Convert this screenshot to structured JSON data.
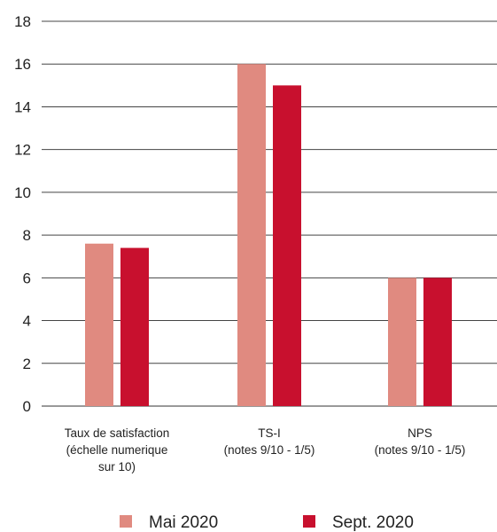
{
  "chart_data": {
    "type": "bar",
    "categories": [
      [
        "Taux de satisfaction",
        "(échelle numerique",
        "sur 10)"
      ],
      [
        "TS-I",
        "(notes 9/10 - 1/5)"
      ],
      [
        "NPS",
        "(notes 9/10 - 1/5)"
      ]
    ],
    "series": [
      {
        "name": "Mai 2020",
        "color": "#e08a80",
        "values": [
          7.6,
          16,
          6
        ]
      },
      {
        "name": "Sept. 2020",
        "color": "#c8102e",
        "values": [
          7.4,
          15,
          6
        ]
      }
    ],
    "ylim": [
      0,
      18
    ],
    "yticks": [
      0,
      2,
      4,
      6,
      8,
      10,
      12,
      14,
      16,
      18
    ],
    "grid": true,
    "legend": "bottom"
  }
}
